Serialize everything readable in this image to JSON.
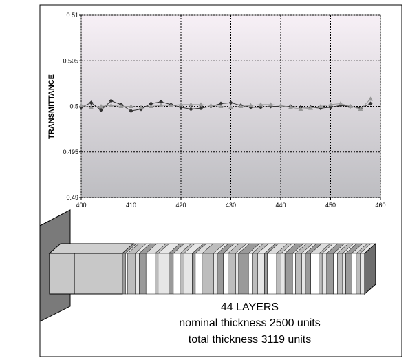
{
  "chart_data": {
    "type": "line",
    "ylabel": "TRANSMITTANCE",
    "xlim": [
      400,
      460
    ],
    "xticks": [
      400,
      410,
      420,
      430,
      440,
      450,
      460
    ],
    "ylim": [
      0.49,
      0.51
    ],
    "yticks": [
      0.49,
      0.495,
      0.5,
      0.505,
      0.51
    ],
    "grid": true,
    "x": [
      400,
      402,
      404,
      406,
      408,
      410,
      412,
      414,
      416,
      418,
      420,
      422,
      424,
      426,
      428,
      430,
      432,
      434,
      436,
      438,
      440,
      442,
      444,
      446,
      448,
      450,
      452,
      454,
      456,
      458
    ],
    "series": [
      {
        "color": "#333333",
        "marker": "diamond",
        "values": [
          0.4999,
          0.5004,
          0.4996,
          0.5006,
          0.5002,
          0.4995,
          0.4997,
          0.5003,
          0.5005,
          0.5002,
          0.4999,
          0.4997,
          0.4998,
          0.5,
          0.5003,
          0.5004,
          0.5001,
          0.4999,
          0.4999,
          0.5,
          0.5,
          0.5,
          0.4999,
          0.4999,
          0.4998,
          0.4999,
          0.5001,
          0.5,
          0.4998,
          0.5003
        ]
      },
      {
        "color": "#999999",
        "marker": "triangle",
        "values": [
          0.5001,
          0.4999,
          0.5,
          0.5001,
          0.5,
          0.5,
          0.4999,
          0.5,
          0.5001,
          0.5001,
          0.5002,
          0.5002,
          0.5002,
          0.5001,
          0.5,
          0.4999,
          0.5,
          0.5001,
          0.5002,
          0.5002,
          0.5001,
          0.4999,
          0.4997,
          0.4998,
          0.5,
          0.5002,
          0.5003,
          0.5,
          0.4997,
          0.5008
        ]
      }
    ],
    "annotations": [
      "44 LAYERS",
      "nominal thickness 2500 units",
      "total thickness 3119 units"
    ]
  }
}
